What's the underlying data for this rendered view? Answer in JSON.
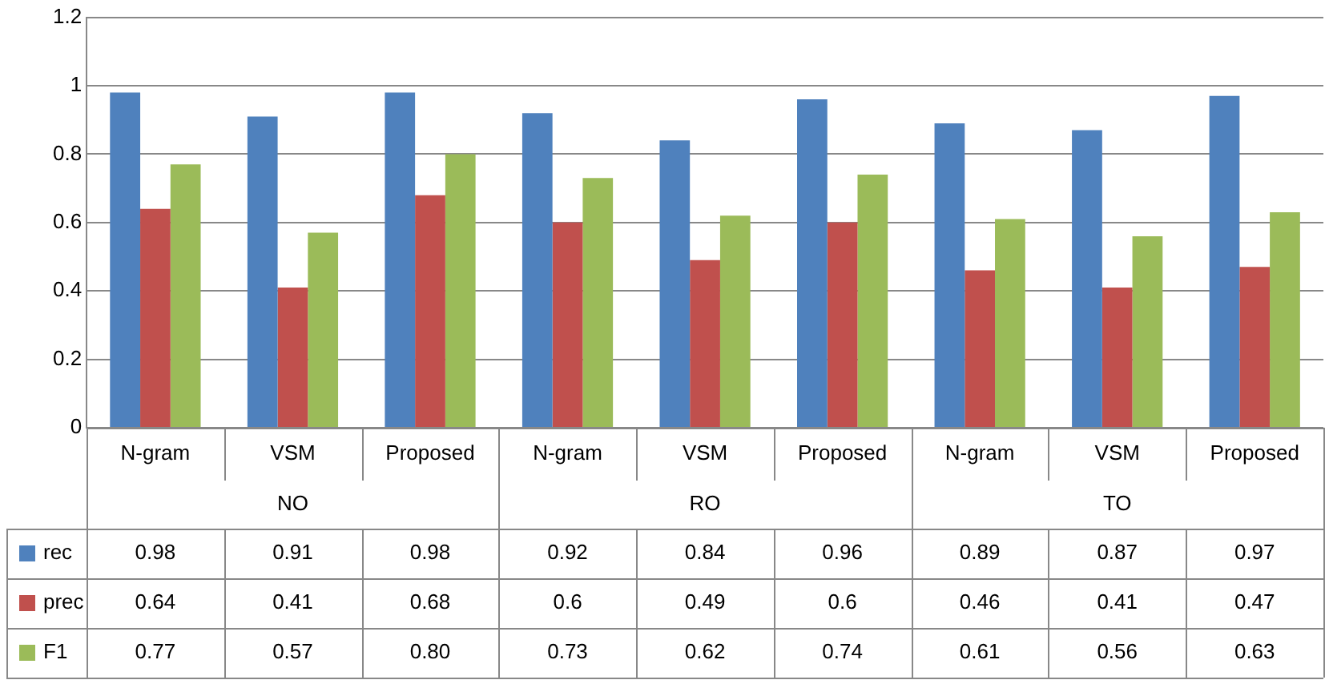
{
  "chart_data": {
    "type": "bar",
    "categories": [
      "N-gram",
      "VSM",
      "Proposed",
      "N-gram",
      "VSM",
      "Proposed",
      "N-gram",
      "VSM",
      "Proposed"
    ],
    "annotations": [
      "NO",
      "RO",
      "TO"
    ],
    "series": [
      {
        "name": "rec",
        "color": "#4f81bd",
        "values": [
          0.98,
          0.91,
          0.98,
          0.92,
          0.84,
          0.96,
          0.89,
          0.87,
          0.97
        ],
        "value_labels": [
          "0.98",
          "0.91",
          "0.98",
          "0.92",
          "0.84",
          "0.96",
          "0.89",
          "0.87",
          "0.97"
        ]
      },
      {
        "name": "prec",
        "color": "#c0504d",
        "values": [
          0.64,
          0.41,
          0.68,
          0.6,
          0.49,
          0.6,
          0.46,
          0.41,
          0.47
        ],
        "value_labels": [
          "0.64",
          "0.41",
          "0.68",
          "0.6",
          "0.49",
          "0.6",
          "0.46",
          "0.41",
          "0.47"
        ]
      },
      {
        "name": "F1",
        "color": "#9bbb59",
        "values": [
          0.77,
          0.57,
          0.8,
          0.73,
          0.62,
          0.74,
          0.61,
          0.56,
          0.63
        ],
        "value_labels": [
          "0.77",
          "0.57",
          "0.80",
          "0.73",
          "0.62",
          "0.74",
          "0.61",
          "0.56",
          "0.63"
        ]
      }
    ],
    "ylim": [
      0,
      1.2
    ],
    "yticks": [
      0,
      0.2,
      0.4,
      0.6,
      0.8,
      1,
      1.2
    ],
    "grid": "y",
    "legend": "bottom"
  }
}
